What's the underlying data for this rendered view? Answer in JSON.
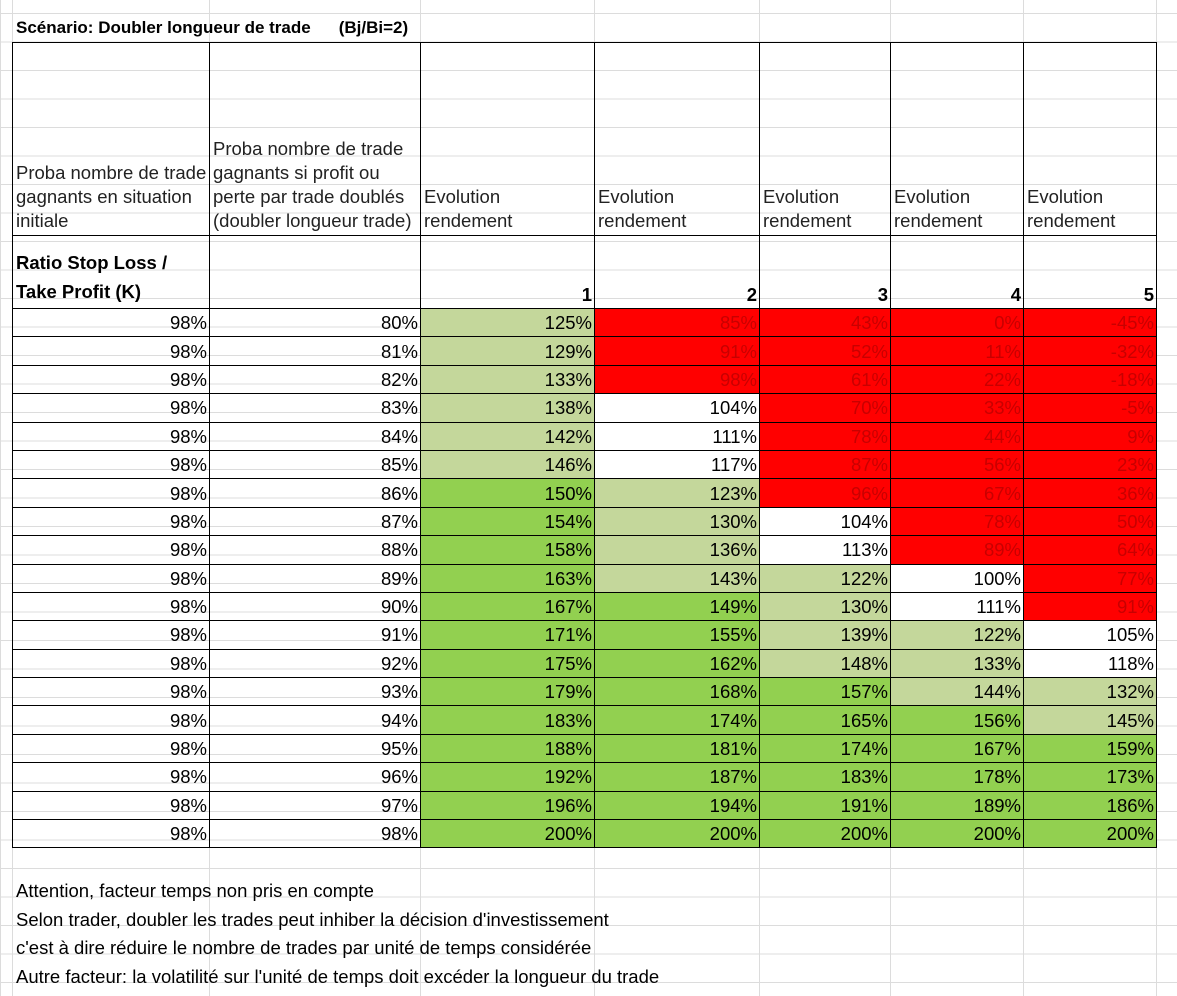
{
  "title": "Scénario: Doubler longueur de trade",
  "subtitle": "(Bj/Bi=2)",
  "headers": [
    "Proba nombre de trade gagnants en situation initiale",
    "Proba nombre de trade gagnants si profit ou perte par trade doublés (doubler longueur trade)",
    "Evolution rendement",
    "Evolution rendement",
    "Evolution rendement",
    "Evolution rendement",
    "Evolution rendement"
  ],
  "ratio_label": "Ratio Stop Loss / Take Profit (K)",
  "k_values": [
    "1",
    "2",
    "3",
    "4",
    "5"
  ],
  "colors": {
    "red": "#ff0000",
    "light_green": "#c4d79b",
    "green": "#92d050",
    "white": "#ffffff"
  },
  "rows": [
    {
      "p0": "98%",
      "p1": "80%",
      "v": [
        "125%",
        "85%",
        "43%",
        "0%",
        "-45%"
      ],
      "c": [
        "lg",
        "red",
        "red",
        "red",
        "red"
      ]
    },
    {
      "p0": "98%",
      "p1": "81%",
      "v": [
        "129%",
        "91%",
        "52%",
        "11%",
        "-32%"
      ],
      "c": [
        "lg",
        "red",
        "red",
        "red",
        "red"
      ]
    },
    {
      "p0": "98%",
      "p1": "82%",
      "v": [
        "133%",
        "98%",
        "61%",
        "22%",
        "-18%"
      ],
      "c": [
        "lg",
        "red",
        "red",
        "red",
        "red"
      ]
    },
    {
      "p0": "98%",
      "p1": "83%",
      "v": [
        "138%",
        "104%",
        "70%",
        "33%",
        "-5%"
      ],
      "c": [
        "lg",
        "wh",
        "red",
        "red",
        "red"
      ]
    },
    {
      "p0": "98%",
      "p1": "84%",
      "v": [
        "142%",
        "111%",
        "78%",
        "44%",
        "9%"
      ],
      "c": [
        "lg",
        "wh",
        "red",
        "red",
        "red"
      ]
    },
    {
      "p0": "98%",
      "p1": "85%",
      "v": [
        "146%",
        "117%",
        "87%",
        "56%",
        "23%"
      ],
      "c": [
        "lg",
        "wh",
        "red",
        "red",
        "red"
      ]
    },
    {
      "p0": "98%",
      "p1": "86%",
      "v": [
        "150%",
        "123%",
        "96%",
        "67%",
        "36%"
      ],
      "c": [
        "gr",
        "lg",
        "red",
        "red",
        "red"
      ]
    },
    {
      "p0": "98%",
      "p1": "87%",
      "v": [
        "154%",
        "130%",
        "104%",
        "78%",
        "50%"
      ],
      "c": [
        "gr",
        "lg",
        "wh",
        "red",
        "red"
      ]
    },
    {
      "p0": "98%",
      "p1": "88%",
      "v": [
        "158%",
        "136%",
        "113%",
        "89%",
        "64%"
      ],
      "c": [
        "gr",
        "lg",
        "wh",
        "red",
        "red"
      ]
    },
    {
      "p0": "98%",
      "p1": "89%",
      "v": [
        "163%",
        "143%",
        "122%",
        "100%",
        "77%"
      ],
      "c": [
        "gr",
        "lg",
        "lg",
        "wh",
        "red"
      ]
    },
    {
      "p0": "98%",
      "p1": "90%",
      "v": [
        "167%",
        "149%",
        "130%",
        "111%",
        "91%"
      ],
      "c": [
        "gr",
        "gr",
        "lg",
        "wh",
        "red"
      ]
    },
    {
      "p0": "98%",
      "p1": "91%",
      "v": [
        "171%",
        "155%",
        "139%",
        "122%",
        "105%"
      ],
      "c": [
        "gr",
        "gr",
        "lg",
        "lg",
        "wh"
      ]
    },
    {
      "p0": "98%",
      "p1": "92%",
      "v": [
        "175%",
        "162%",
        "148%",
        "133%",
        "118%"
      ],
      "c": [
        "gr",
        "gr",
        "lg",
        "lg",
        "wh"
      ]
    },
    {
      "p0": "98%",
      "p1": "93%",
      "v": [
        "179%",
        "168%",
        "157%",
        "144%",
        "132%"
      ],
      "c": [
        "gr",
        "gr",
        "gr",
        "lg",
        "lg"
      ]
    },
    {
      "p0": "98%",
      "p1": "94%",
      "v": [
        "183%",
        "174%",
        "165%",
        "156%",
        "145%"
      ],
      "c": [
        "gr",
        "gr",
        "gr",
        "gr",
        "lg"
      ]
    },
    {
      "p0": "98%",
      "p1": "95%",
      "v": [
        "188%",
        "181%",
        "174%",
        "167%",
        "159%"
      ],
      "c": [
        "gr",
        "gr",
        "gr",
        "gr",
        "gr"
      ]
    },
    {
      "p0": "98%",
      "p1": "96%",
      "v": [
        "192%",
        "187%",
        "183%",
        "178%",
        "173%"
      ],
      "c": [
        "gr",
        "gr",
        "gr",
        "gr",
        "gr"
      ]
    },
    {
      "p0": "98%",
      "p1": "97%",
      "v": [
        "196%",
        "194%",
        "191%",
        "189%",
        "186%"
      ],
      "c": [
        "gr",
        "gr",
        "gr",
        "gr",
        "gr"
      ]
    },
    {
      "p0": "98%",
      "p1": "98%",
      "v": [
        "200%",
        "200%",
        "200%",
        "200%",
        "200%"
      ],
      "c": [
        "gr",
        "gr",
        "gr",
        "gr",
        "gr"
      ]
    }
  ],
  "notes": [
    "Attention, facteur temps non pris en compte",
    "Selon trader, doubler les trades peut inhiber la décision d'investissement",
    "c'est à dire réduire le nombre de trades par unité de temps considérée",
    "Autre facteur: la volatilité sur l'unité de temps doit excéder la longueur du trade"
  ]
}
